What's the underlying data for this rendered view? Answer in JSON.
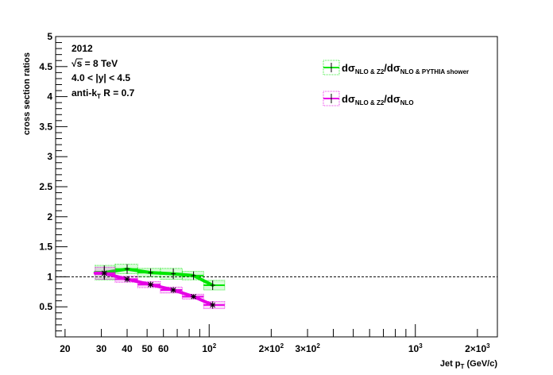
{
  "chart_data": {
    "type": "scatter",
    "title": "",
    "xlabel": {
      "main": "Jet p",
      "sub": "T",
      "unit": " (GeV/c)"
    },
    "ylabel": "cross section ratios",
    "x_scale": "log",
    "xlim": [
      18,
      2500
    ],
    "ylim": [
      0,
      5
    ],
    "y_ticks": [
      0.5,
      1,
      1.5,
      2,
      2.5,
      3,
      3.5,
      4,
      4.5,
      5
    ],
    "y_tick_labels": [
      "0.5",
      "1",
      "1.5",
      "2",
      "2.5",
      "3",
      "3.5",
      "4",
      "4.5",
      "5"
    ],
    "x_tick_labels": [
      {
        "value": 20,
        "base": "20",
        "exp": ""
      },
      {
        "value": 30,
        "base": "30",
        "exp": ""
      },
      {
        "value": 40,
        "base": "40",
        "exp": ""
      },
      {
        "value": 50,
        "base": "50",
        "exp": ""
      },
      {
        "value": 60,
        "base": "60",
        "exp": ""
      },
      {
        "value": 100,
        "base": "10",
        "exp": "2"
      },
      {
        "value": 200,
        "base": "2×10",
        "exp": "2"
      },
      {
        "value": 300,
        "base": "3×10",
        "exp": "2"
      },
      {
        "value": 1000,
        "base": "10",
        "exp": "3"
      },
      {
        "value": 2000,
        "base": "2×10",
        "exp": "3"
      }
    ],
    "reference_line": 1,
    "grid": false,
    "legend_position": "top-right",
    "annotations": {
      "year": "2012",
      "energy": {
        "sqrt": "√",
        "s": "s",
        "rest": " = 8 TeV"
      },
      "rapidity": "4.0 < |y| < 4.5",
      "algo": {
        "pre": "anti-k",
        "sub": "T",
        "post": " R = 0.7"
      }
    },
    "series": [
      {
        "name": {
          "d1": "dσ",
          "s1": "NLO & Z2",
          "mid": "/dσ",
          "s2": "NLO & PYTHIA shower"
        },
        "color": "#00e600",
        "marker": "plus",
        "x": [
          31,
          40,
          52,
          67,
          84,
          104
        ],
        "y": [
          1.07,
          1.13,
          1.07,
          1.05,
          1.02,
          0.86
        ],
        "xlow": [
          28,
          35,
          45,
          58,
          74,
          94
        ],
        "xhigh": [
          35,
          45,
          58,
          74,
          94,
          119
        ],
        "yerr": [
          0.12,
          0.08,
          0.07,
          0.09,
          0.07,
          0.08
        ]
      },
      {
        "name": {
          "d1": "dσ",
          "s1": "NLO & Z2",
          "mid": "/dσ",
          "s2": "NLO"
        },
        "color": "#e600e6",
        "marker": "star",
        "x": [
          31,
          40,
          52,
          67,
          84,
          104
        ],
        "y": [
          1.06,
          0.96,
          0.87,
          0.78,
          0.67,
          0.53
        ],
        "xlow": [
          28,
          35,
          45,
          58,
          74,
          94
        ],
        "xhigh": [
          35,
          45,
          58,
          74,
          94,
          119
        ],
        "yerr": [
          0.1,
          0.05,
          0.05,
          0.05,
          0.04,
          0.06
        ]
      }
    ]
  }
}
